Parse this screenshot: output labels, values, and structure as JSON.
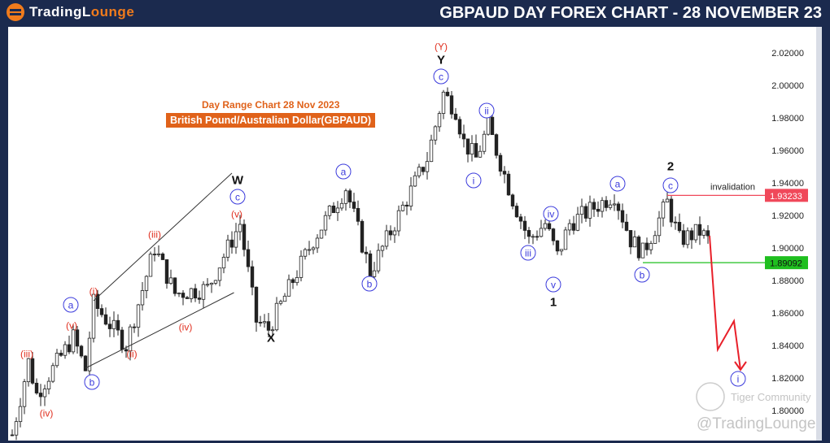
{
  "header": {
    "logo_text_1": "TradingL",
    "logo_text_2": "ounge",
    "title": "GBPAUD DAY FOREX CHART - 28 NOVEMBER 23"
  },
  "subtitle": "Day Range Chart 28 Nov  2023",
  "instrument": "British Pound/Australian Dollar(GBPAUD)",
  "watermark": {
    "community": "Tiger Community",
    "handle": "@TradingLounge"
  },
  "colors": {
    "bull": "#222222",
    "bear": "#222222",
    "invalidation": "#f0485a",
    "support": "#1fbf1f",
    "forecast": "#e8202a",
    "wave_blue": "#3a3adc",
    "wave_red": "#e03020",
    "wave_black": "#111111",
    "header": "#1b2a4e",
    "accent": "#e0621a"
  },
  "chart_data": {
    "type": "candlestick",
    "title": "GBPAUD DAY FOREX CHART - 28 NOVEMBER 23",
    "ylim": [
      1.78,
      2.03
    ],
    "yticks": [
      "1.80000",
      "1.82000",
      "1.84000",
      "1.86000",
      "1.88000",
      "1.90000",
      "1.92000",
      "1.94000",
      "1.96000",
      "1.98000",
      "2.00000",
      "2.02000"
    ],
    "grid": false,
    "price_path": [
      [
        1,
        1.785
      ],
      [
        5,
        1.83
      ],
      [
        7,
        1.81
      ],
      [
        16,
        1.845
      ],
      [
        19,
        1.825
      ],
      [
        21,
        1.866
      ],
      [
        29,
        1.84
      ],
      [
        36,
        1.9
      ],
      [
        41,
        1.872
      ],
      [
        49,
        1.875
      ],
      [
        57,
        1.915
      ],
      [
        61,
        1.855
      ],
      [
        64,
        1.85
      ],
      [
        66,
        1.86
      ],
      [
        75,
        1.905
      ],
      [
        83,
        1.937
      ],
      [
        89,
        1.885
      ],
      [
        94,
        1.91
      ],
      [
        103,
        1.955
      ],
      [
        107,
        1.995
      ],
      [
        110,
        1.985
      ],
      [
        112,
        1.965
      ],
      [
        115,
        1.955
      ],
      [
        118,
        1.975
      ],
      [
        124,
        1.93
      ],
      [
        128,
        1.905
      ],
      [
        132,
        1.915
      ],
      [
        135,
        1.895
      ],
      [
        138,
        1.915
      ],
      [
        149,
        1.933
      ],
      [
        153,
        1.905
      ],
      [
        156,
        1.897
      ],
      [
        162,
        1.928
      ],
      [
        165,
        1.905
      ],
      [
        170,
        1.91
      ],
      [
        172,
        1.905
      ]
    ],
    "levels": [
      {
        "label": "invalidation",
        "price": "1.93233",
        "value": 1.93233,
        "from_bar": 162,
        "color": "#f0485a"
      },
      {
        "label": "",
        "price": "1.89092",
        "value": 1.89092,
        "from_bar": 156,
        "color": "#1fbf1f"
      }
    ],
    "wedge": [
      [
        [
          21,
          1.8675
        ],
        [
          55,
          1.946
        ]
      ],
      [
        [
          19,
          1.826
        ],
        [
          55.5,
          1.8725
        ]
      ]
    ],
    "forecast": [
      [
        172.4,
        1.9075
      ],
      [
        174.4,
        1.8375
      ],
      [
        178.4,
        1.855
      ],
      [
        180,
        1.825
      ]
    ],
    "waves": [
      {
        "t": "(iii)",
        "c": "red",
        "o": false,
        "bar": 4.6,
        "p": 1.835
      },
      {
        "t": "(iv)",
        "c": "red",
        "o": false,
        "bar": 9.4,
        "p": 1.7985
      },
      {
        "t": "a",
        "c": "blue",
        "o": true,
        "bar": 15.4,
        "p": 1.865
      },
      {
        "t": "(v)",
        "c": "red",
        "o": false,
        "bar": 15.6,
        "p": 1.8525
      },
      {
        "t": "(i)",
        "c": "red",
        "o": false,
        "bar": 21,
        "p": 1.8735
      },
      {
        "t": "b",
        "c": "blue",
        "o": true,
        "bar": 20.6,
        "p": 1.8175
      },
      {
        "t": "(ii)",
        "c": "red",
        "o": false,
        "bar": 30.4,
        "p": 1.835
      },
      {
        "t": "(iii)",
        "c": "red",
        "o": false,
        "bar": 36,
        "p": 1.9085
      },
      {
        "t": "(iv)",
        "c": "red",
        "o": false,
        "bar": 43.6,
        "p": 1.8515
      },
      {
        "t": "W",
        "c": "black",
        "o": false,
        "bar": 56.4,
        "p": 1.9415
      },
      {
        "t": "c",
        "c": "blue",
        "o": true,
        "bar": 56.4,
        "p": 1.9315
      },
      {
        "t": "(v)",
        "c": "red",
        "o": false,
        "bar": 56.2,
        "p": 1.921
      },
      {
        "t": "X",
        "c": "black",
        "o": false,
        "bar": 64.6,
        "p": 1.8445
      },
      {
        "t": "a",
        "c": "blue",
        "o": true,
        "bar": 82.4,
        "p": 1.947
      },
      {
        "t": "b",
        "c": "blue",
        "o": true,
        "bar": 88.8,
        "p": 1.878
      },
      {
        "t": "(Y)",
        "c": "red",
        "o": false,
        "bar": 106.4,
        "p": 2.024
      },
      {
        "t": "Y",
        "c": "black",
        "o": false,
        "bar": 106.4,
        "p": 2.0155
      },
      {
        "t": "c",
        "c": "blue",
        "o": true,
        "bar": 106.4,
        "p": 2.0055
      },
      {
        "t": "ii",
        "c": "blue",
        "o": true,
        "bar": 117.6,
        "p": 1.9845
      },
      {
        "t": "i",
        "c": "blue",
        "o": true,
        "bar": 114.4,
        "p": 1.9415
      },
      {
        "t": "iv",
        "c": "blue",
        "o": true,
        "bar": 133.4,
        "p": 1.921
      },
      {
        "t": "iii",
        "c": "blue",
        "o": true,
        "bar": 127.8,
        "p": 1.897
      },
      {
        "t": "v",
        "c": "blue",
        "o": true,
        "bar": 134,
        "p": 1.8775
      },
      {
        "t": "1",
        "c": "black",
        "o": false,
        "bar": 134,
        "p": 1.8665
      },
      {
        "t": "a",
        "c": "blue",
        "o": true,
        "bar": 149.8,
        "p": 1.9395
      },
      {
        "t": "2",
        "c": "black",
        "o": false,
        "bar": 162.8,
        "p": 1.95
      },
      {
        "t": "c",
        "c": "blue",
        "o": true,
        "bar": 162.8,
        "p": 1.9385
      },
      {
        "t": "b",
        "c": "blue",
        "o": true,
        "bar": 155.8,
        "p": 1.8835
      },
      {
        "t": "i",
        "c": "blue",
        "o": true,
        "bar": 179.4,
        "p": 1.8195
      }
    ]
  }
}
